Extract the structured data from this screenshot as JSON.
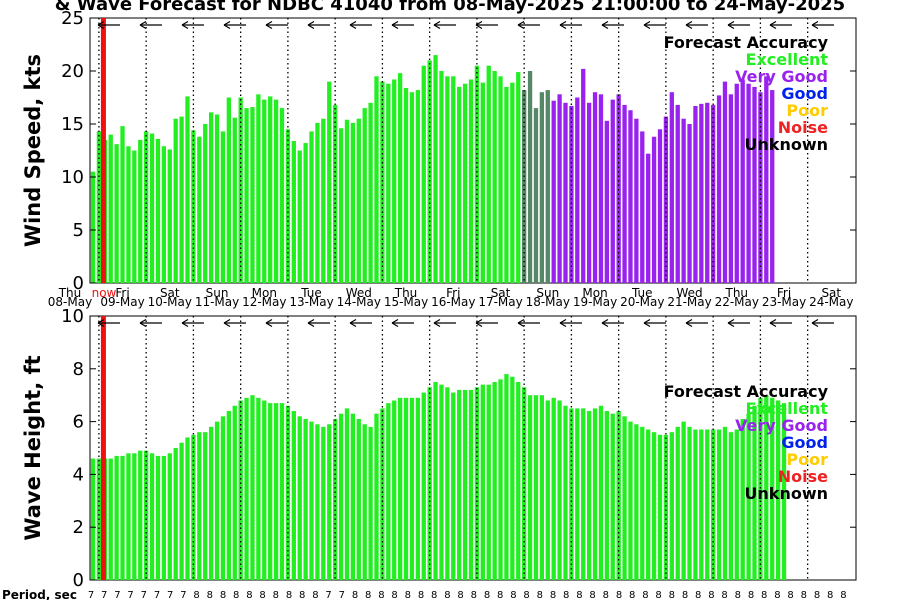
{
  "title": "& Wave Forecast for NDBC 41040 from 08-May-2025 21:00:00 to 24-May-2025",
  "accuracy_legend": {
    "title": "Forecast Accuracy",
    "items": [
      {
        "label": "Excellent",
        "color": "#22ee22"
      },
      {
        "label": "Very Good",
        "color": "#9922ee"
      },
      {
        "label": "Good",
        "color": "#0022ee"
      },
      {
        "label": "Poor",
        "color": "#ffcc00"
      },
      {
        "label": "Noise",
        "color": "#ee2222"
      },
      {
        "label": "Unknown",
        "color": "#000000"
      }
    ]
  },
  "day_labels": [
    {
      "day": "Thu",
      "date": "08-May"
    },
    {
      "day": "Fri",
      "date": "09-May"
    },
    {
      "day": "Sat",
      "date": "10-May"
    },
    {
      "day": "Sun",
      "date": "11-May"
    },
    {
      "day": "Mon",
      "date": "12-May"
    },
    {
      "day": "Tue",
      "date": "13-May"
    },
    {
      "day": "Wed",
      "date": "14-May"
    },
    {
      "day": "Thu",
      "date": "15-May"
    },
    {
      "day": "Fri",
      "date": "16-May"
    },
    {
      "day": "Sat",
      "date": "17-May"
    },
    {
      "day": "Sun",
      "date": "18-May"
    },
    {
      "day": "Mon",
      "date": "19-May"
    },
    {
      "day": "Tue",
      "date": "20-May"
    },
    {
      "day": "Wed",
      "date": "21-May"
    },
    {
      "day": "Thu",
      "date": "22-May"
    },
    {
      "day": "Fri",
      "date": "23-May"
    },
    {
      "day": "Sat",
      "date": "24-May"
    }
  ],
  "now_label": "now",
  "period_label": "Period, sec",
  "period_values": [
    7,
    7,
    7,
    7,
    7,
    7,
    7,
    7,
    8,
    8,
    8,
    8,
    8,
    8,
    8,
    8,
    8,
    8,
    7,
    7,
    8,
    8,
    8,
    8,
    8,
    8,
    8,
    8,
    8,
    8,
    8,
    8,
    8,
    8,
    8,
    8,
    8,
    8,
    8,
    8,
    8,
    8,
    8,
    8,
    8,
    8,
    8,
    8,
    8,
    8,
    8,
    8,
    8,
    8,
    8,
    8,
    8,
    8
  ],
  "colors": {
    "excellent": "#22ee22",
    "very_good": "#9922ee",
    "unknown_transition": "#558866",
    "now_line": "#ee1111"
  },
  "chart_data": [
    {
      "type": "bar",
      "name": "wind",
      "ylabel": "Wind Speed, kts",
      "ylim": [
        0,
        25
      ],
      "yticks": [
        0,
        5,
        10,
        15,
        20,
        25
      ],
      "time_start": "08-May-2025 21:00",
      "step_hours": 3,
      "now_time": "09-May-2025 00:00",
      "values": [
        10.5,
        14.3,
        13.5,
        14.0,
        13.1,
        14.8,
        12.9,
        12.5,
        13.5,
        14.3,
        14.1,
        13.6,
        12.9,
        12.6,
        15.5,
        15.7,
        17.6,
        14.4,
        13.8,
        15.0,
        16.1,
        15.9,
        14.3,
        17.5,
        15.6,
        17.5,
        16.5,
        16.6,
        17.8,
        17.3,
        17.6,
        17.3,
        16.5,
        14.5,
        13.4,
        12.5,
        13.2,
        14.3,
        15.1,
        15.5,
        19.0,
        16.8,
        14.6,
        15.4,
        15.1,
        15.5,
        16.5,
        17.0,
        19.5,
        19.0,
        18.8,
        19.2,
        19.8,
        18.4,
        18.0,
        18.2,
        20.5,
        21.0,
        21.5,
        20.0,
        19.5,
        19.5,
        18.5,
        18.8,
        19.2,
        20.5,
        18.9,
        20.5,
        20.0,
        19.5,
        18.5,
        18.9,
        19.9,
        18.2,
        20.0,
        16.5,
        18.0,
        18.2,
        17.2,
        17.8,
        17.0,
        16.7,
        17.5,
        20.2,
        17.0,
        18.0,
        17.8,
        15.3,
        17.3,
        17.8,
        16.8,
        16.3,
        15.5,
        14.3,
        12.2,
        13.8,
        14.5,
        15.7,
        18.0,
        16.8,
        15.5,
        15.0,
        16.7,
        16.9,
        17.0,
        16.8,
        17.7,
        19.0,
        17.8,
        18.8,
        19.2,
        18.8,
        18.5,
        18.0,
        19.5,
        18.2
      ],
      "colors": [
        "excellent",
        "excellent",
        "excellent",
        "excellent",
        "excellent",
        "excellent",
        "excellent",
        "excellent",
        "excellent",
        "excellent",
        "excellent",
        "excellent",
        "excellent",
        "excellent",
        "excellent",
        "excellent",
        "excellent",
        "excellent",
        "excellent",
        "excellent",
        "excellent",
        "excellent",
        "excellent",
        "excellent",
        "excellent",
        "excellent",
        "excellent",
        "excellent",
        "excellent",
        "excellent",
        "excellent",
        "excellent",
        "excellent",
        "excellent",
        "excellent",
        "excellent",
        "excellent",
        "excellent",
        "excellent",
        "excellent",
        "excellent",
        "excellent",
        "excellent",
        "excellent",
        "excellent",
        "excellent",
        "excellent",
        "excellent",
        "excellent",
        "excellent",
        "excellent",
        "excellent",
        "excellent",
        "excellent",
        "excellent",
        "excellent",
        "excellent",
        "excellent",
        "excellent",
        "excellent",
        "excellent",
        "excellent",
        "excellent",
        "excellent",
        "excellent",
        "excellent",
        "excellent",
        "excellent",
        "excellent",
        "excellent",
        "excellent",
        "excellent",
        "excellent",
        "unknown_transition",
        "unknown_transition",
        "unknown_transition",
        "unknown_transition",
        "unknown_transition",
        "very_good",
        "very_good",
        "very_good",
        "very_good",
        "very_good",
        "very_good",
        "very_good",
        "very_good",
        "very_good",
        "very_good",
        "very_good",
        "very_good",
        "very_good",
        "very_good",
        "very_good",
        "very_good",
        "very_good",
        "very_good",
        "very_good",
        "very_good",
        "very_good",
        "very_good",
        "very_good",
        "very_good",
        "very_good",
        "very_good",
        "very_good",
        "very_good",
        "very_good",
        "very_good",
        "very_good",
        "very_good",
        "very_good",
        "very_good",
        "very_good",
        "very_good",
        "very_good",
        "very_good"
      ]
    },
    {
      "type": "bar",
      "name": "wave",
      "ylabel": "Wave Height, ft",
      "ylim": [
        0,
        10
      ],
      "yticks": [
        0,
        2,
        4,
        6,
        8,
        10
      ],
      "time_start": "08-May-2025 21:00",
      "step_hours": 3,
      "now_time": "09-May-2025 00:00",
      "values": [
        4.6,
        4.6,
        4.6,
        4.6,
        4.7,
        4.7,
        4.8,
        4.8,
        4.9,
        4.9,
        4.8,
        4.7,
        4.7,
        4.8,
        5.0,
        5.2,
        5.4,
        5.5,
        5.6,
        5.6,
        5.8,
        6.0,
        6.2,
        6.4,
        6.6,
        6.8,
        6.9,
        7.0,
        6.9,
        6.8,
        6.7,
        6.7,
        6.7,
        6.6,
        6.4,
        6.2,
        6.1,
        6.0,
        5.9,
        5.8,
        5.9,
        6.1,
        6.3,
        6.5,
        6.3,
        6.1,
        5.9,
        5.8,
        6.3,
        6.5,
        6.7,
        6.8,
        6.9,
        6.9,
        6.9,
        6.9,
        7.1,
        7.3,
        7.5,
        7.4,
        7.3,
        7.1,
        7.2,
        7.2,
        7.2,
        7.3,
        7.4,
        7.4,
        7.5,
        7.6,
        7.8,
        7.7,
        7.5,
        7.3,
        7.0,
        7.0,
        7.0,
        6.8,
        6.9,
        6.8,
        6.6,
        6.5,
        6.5,
        6.5,
        6.4,
        6.5,
        6.6,
        6.4,
        6.3,
        6.4,
        6.2,
        6.0,
        5.9,
        5.8,
        5.7,
        5.6,
        5.5,
        5.5,
        5.6,
        5.8,
        6.0,
        5.8,
        5.7,
        5.7,
        5.7,
        5.7,
        5.7,
        5.8,
        5.6,
        5.7,
        6.1,
        6.3,
        6.6,
        6.9,
        7.0,
        6.9,
        6.8,
        6.7
      ]
    }
  ]
}
